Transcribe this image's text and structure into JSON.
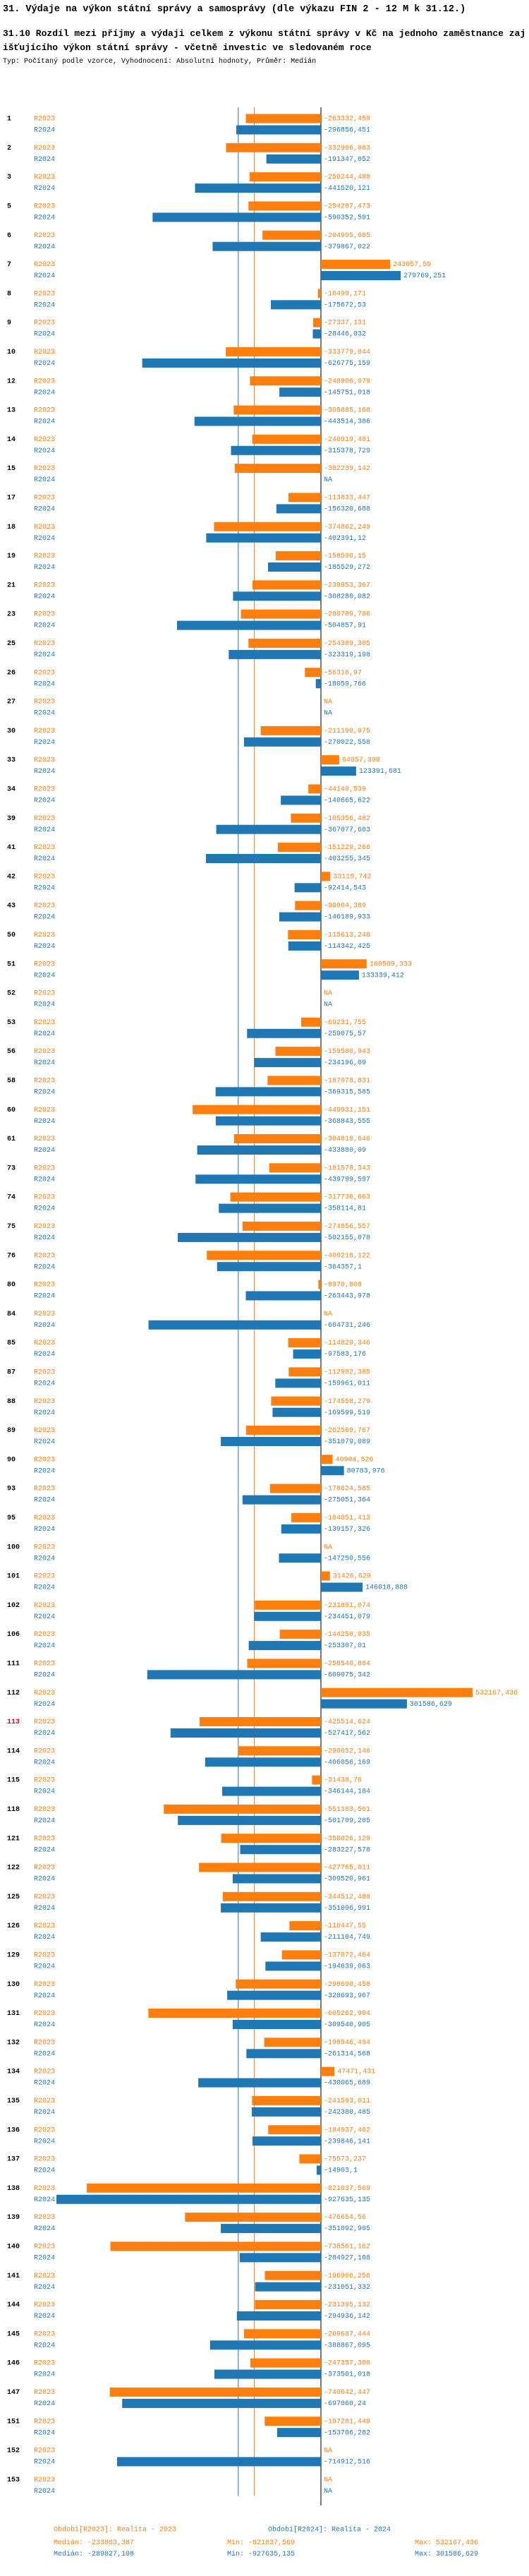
{
  "header": {
    "title": "31. Výdaje na výkon státní správy a samosprávy (dle výkazu FIN 2 - 12 M k 31.12.)",
    "subtitle": "31.10 Rozdíl mezi  příjmy a výdaji celkem z výkonu státní správy v Kč na jednoho zaměstnance zajišťujícího výkon státní správy - včetně investic ve sledovaném roce",
    "note": "Typ: Počítaný podle vzorce, Vyhodnocení: Absolutní hodnoty, Průměr: Medián"
  },
  "chart_data": {
    "type": "hbar",
    "highlight": "113",
    "highlight_color": "#e0001a",
    "categories": [
      "1",
      "2",
      "3",
      "5",
      "6",
      "7",
      "8",
      "9",
      "10",
      "12",
      "13",
      "14",
      "15",
      "17",
      "18",
      "19",
      "21",
      "23",
      "25",
      "26",
      "27",
      "30",
      "33",
      "34",
      "39",
      "41",
      "42",
      "43",
      "50",
      "51",
      "52",
      "53",
      "56",
      "58",
      "60",
      "61",
      "73",
      "74",
      "75",
      "76",
      "80",
      "84",
      "85",
      "87",
      "88",
      "89",
      "90",
      "93",
      "95",
      "100",
      "101",
      "102",
      "106",
      "111",
      "112",
      "113",
      "114",
      "115",
      "118",
      "121",
      "122",
      "125",
      "126",
      "129",
      "130",
      "131",
      "132",
      "134",
      "135",
      "136",
      "137",
      "138",
      "139",
      "140",
      "141",
      "144",
      "145",
      "146",
      "147",
      "151",
      "152",
      "153"
    ],
    "stat_labels": [
      "Medián:",
      "Min:",
      "Max:"
    ],
    "series": [
      {
        "name": "R2023",
        "legend_label": "Obdobi[R2023]: Realita - 2023",
        "color": "#ff7f0e",
        "stats": [
          -233803.387,
          -821037.569,
          532167.436
        ],
        "stats_labels": [
          "-233803,387",
          "-821037,569",
          "532167,436"
        ],
        "values": [
          -263332.459,
          -332906.083,
          -250244.488,
          -254287.473,
          -204995.085,
          243057.59,
          -10499.171,
          -27337.131,
          -333779.844,
          -248906.079,
          -305885.168,
          -240919.401,
          -302239.142,
          -113833.447,
          -374862.249,
          -158590.15,
          -239953.367,
          -280789.786,
          -254389.305,
          -56316.97,
          null,
          -211190.975,
          64057.398,
          -44140.539,
          -105356.482,
          -151229.266,
          33115.742,
          -90904.389,
          -115613.246,
          160509.333,
          null,
          -69231.755,
          -159580.943,
          -187078.831,
          -449931.151,
          -304818.646,
          -181578.343,
          -317736.663,
          -274856.557,
          -400218.122,
          -8970.808,
          null,
          -114829.346,
          -112982.385,
          -174558.279,
          -262569.767,
          40904.526,
          -178624.585,
          -104051.413,
          null,
          31426.629,
          -231891.074,
          -144250.035,
          -258540.884,
          532167.436,
          -425514.624,
          -290052.146,
          -31438.76,
          -551103.561,
          -350026.129,
          -427765.011,
          -344512.488,
          -110447.55,
          -137072.464,
          -298690.458,
          -605262.904,
          -198946.494,
          47471.431,
          -241593.011,
          -184937.402,
          -75573.237,
          -821037.569,
          -476654.56,
          -738561.162,
          -196906.256,
          -231395.132,
          -269687.444,
          -247357.308,
          -740642.447,
          -197281.449,
          null,
          null
        ],
        "value_labels": [
          "-263332,459",
          "-332906,083",
          "-250244,488",
          "-254287,473",
          "-204995,085",
          "243057,59",
          "-10499,171",
          "-27337,131",
          "-333779,844",
          "-248906,079",
          "-305885,168",
          "-240919,401",
          "-302239,142",
          "-113833,447",
          "-374862,249",
          "-158590,15",
          "-239953,367",
          "-280789,786",
          "-254389,305",
          "-56316,97",
          "NA",
          "-211190,975",
          "64057,398",
          "-44140,539",
          "-105356,482",
          "-151229,266",
          "33115,742",
          "-90904,389",
          "-115613,246",
          "160509,333",
          "NA",
          "-69231,755",
          "-159580,943",
          "-187078,831",
          "-449931,151",
          "-304818,646",
          "-181578,343",
          "-317736,663",
          "-274856,557",
          "-400218,122",
          "-8970,808",
          "NA",
          "-114829,346",
          "-112982,385",
          "-174558,279",
          "-262569,767",
          "40904,526",
          "-178624,585",
          "-104051,413",
          "NA",
          "31426,629",
          "-231891,074",
          "-144250,035",
          "-258540,884",
          "532167,436",
          "-425514,624",
          "-290052,146",
          "-31438,76",
          "-551103,561",
          "-350026,129",
          "-427765,011",
          "-344512,488",
          "-110447,55",
          "-137072,464",
          "-298690,458",
          "-605262,904",
          "-198946,494",
          "47471,431",
          "-241593,011",
          "-184937,402",
          "-75573,237",
          "-821037,569",
          "-476654,56",
          "-738561,162",
          "-196906,256",
          "-231395,132",
          "-269687,444",
          "-247357,308",
          "-740642,447",
          "-197281,449",
          "NA",
          "NA"
        ]
      },
      {
        "name": "R2024",
        "legend_label": "Obdobi[R2024]: Realita - 2024",
        "color": "#1f77b4",
        "stats": [
          -289827.108,
          -927635.135,
          301586.629
        ],
        "stats_labels": [
          "-289827,108",
          "-927635,135",
          "301586,629"
        ],
        "values": [
          -296856.451,
          -191347.052,
          -441520.121,
          -590352.591,
          -379867.022,
          279769.251,
          -175672.53,
          -28446.032,
          -626775.159,
          -145751.018,
          -443514.386,
          -315378.729,
          null,
          -156320.688,
          -402391.12,
          -185529.272,
          -308280.082,
          -504857.91,
          -323319.198,
          -18059.766,
          null,
          -270022.558,
          123391.681,
          -140665.622,
          -367077.603,
          -403255.345,
          -92414.543,
          -146189.933,
          -114342.425,
          133339.412,
          null,
          -259075.57,
          -234196.09,
          -369315.585,
          -368843.555,
          -433880.09,
          -439799.597,
          -358114.81,
          -502155.078,
          -364357.1,
          -263443.978,
          -604731.246,
          -97583.176,
          -159961.011,
          -169599.519,
          -351079.089,
          80783.976,
          -275051.364,
          -139157.326,
          -147250.556,
          146018.888,
          -234451.079,
          -253307.01,
          -609075.342,
          301586.629,
          -527417.562,
          -406056.169,
          -346144.184,
          -501709.205,
          -283227.578,
          -309520.961,
          -351096.991,
          -211104.749,
          -194639.063,
          -328693.967,
          -309540.905,
          -261314.568,
          -430065.689,
          -242380.485,
          -239846.141,
          -14903.1,
          -927635.135,
          -351092.905,
          -284927.108,
          -231051.332,
          -294936.142,
          -388867.095,
          -373501.018,
          -697060.24,
          -153706.282,
          -714912.516,
          null
        ],
        "value_labels": [
          "-296856,451",
          "-191347,052",
          "-441520,121",
          "-590352,591",
          "-379867,022",
          "279769,251",
          "-175672,53",
          "-28446,032",
          "-626775,159",
          "-145751,018",
          "-443514,386",
          "-315378,729",
          "NA",
          "-156320,688",
          "-402391,12",
          "-185529,272",
          "-308280,082",
          "-504857,91",
          "-323319,198",
          "-18059,766",
          "NA",
          "-270022,558",
          "123391,681",
          "-140665,622",
          "-367077,603",
          "-403255,345",
          "-92414,543",
          "-146189,933",
          "-114342,425",
          "133339,412",
          "NA",
          "-259075,57",
          "-234196,09",
          "-369315,585",
          "-368843,555",
          "-433880,09",
          "-439799,597",
          "-358114,81",
          "-502155,078",
          "-364357,1",
          "-263443,978",
          "-604731,246",
          "-97583,176",
          "-159961,011",
          "-169599,519",
          "-351079,089",
          "80783,976",
          "-275051,364",
          "-139157,326",
          "-147250,556",
          "146018,888",
          "-234451,079",
          "-253307,01",
          "-609075,342",
          "301586,629",
          "-527417,562",
          "-406056,169",
          "-346144,184",
          "-501709,205",
          "-283227,578",
          "-309520,961",
          "-351096,991",
          "-211104,749",
          "-194639,063",
          "-328693,967",
          "-309540,905",
          "-261314,568",
          "-430065,689",
          "-242380,485",
          "-239846,141",
          "-14903,1",
          "-927635,135",
          "-351092,905",
          "-284927,108",
          "-231051,332",
          "-294936,142",
          "-388867,095",
          "-373501,018",
          "-697060,24",
          "-153706,282",
          "-714912,516",
          "NA"
        ]
      }
    ]
  }
}
